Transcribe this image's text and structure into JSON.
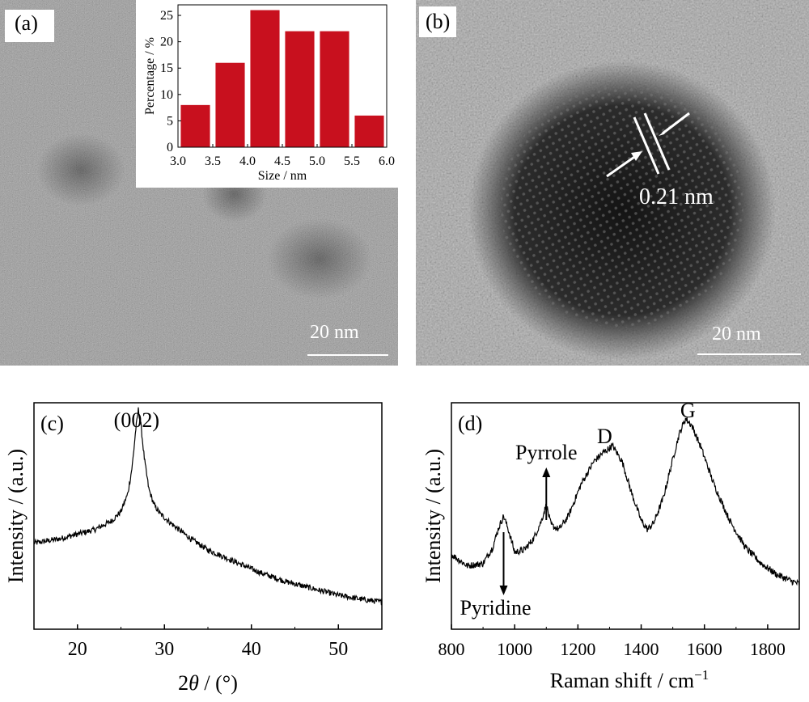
{
  "panels": {
    "a": {
      "label": "(a)",
      "scale_bar": "20 nm"
    },
    "b": {
      "label": "(b)",
      "scale_bar": "20 nm",
      "annotation": "0.21 nm"
    },
    "c": {
      "label": "(c)"
    },
    "d": {
      "label": "(d)"
    }
  },
  "chart_data": [
    {
      "id": "inset_a",
      "type": "bar",
      "xlabel": "Size / nm",
      "ylabel": "Percentage / %",
      "categories": [
        3.25,
        3.75,
        4.25,
        4.75,
        5.25,
        5.75
      ],
      "values": [
        8,
        16,
        26,
        22,
        22,
        6
      ],
      "xlim": [
        3.0,
        6.0
      ],
      "ylim": [
        0,
        27
      ],
      "xticks": [
        "3.0",
        "3.5",
        "4.0",
        "4.5",
        "5.0",
        "5.5",
        "6.0"
      ],
      "yticks": [
        "0",
        "5",
        "10",
        "15",
        "20",
        "25"
      ],
      "bar_color": "#c8101e"
    },
    {
      "id": "xrd_c",
      "type": "line",
      "xlabel_prefix": "2",
      "xlabel_theta": "θ",
      "xlabel_suffix": " / (°)",
      "ylabel": "Intensity / (a.u.)",
      "xlim": [
        15,
        55
      ],
      "xticks": [
        "20",
        "30",
        "40",
        "50"
      ],
      "ylim": [
        0,
        1
      ],
      "x": [
        15,
        18,
        20,
        22,
        24,
        25,
        25.8,
        26.3,
        26.7,
        27.0,
        27.3,
        27.7,
        28.2,
        28.8,
        29.5,
        31,
        33,
        35,
        38,
        41,
        44,
        47,
        50,
        53,
        55
      ],
      "y": [
        0.38,
        0.4,
        0.42,
        0.44,
        0.48,
        0.52,
        0.6,
        0.72,
        0.88,
        0.97,
        0.9,
        0.75,
        0.62,
        0.55,
        0.51,
        0.46,
        0.4,
        0.35,
        0.3,
        0.25,
        0.21,
        0.18,
        0.15,
        0.13,
        0.12
      ],
      "annotations": [
        {
          "text": "(002)",
          "x": 26.8
        }
      ]
    },
    {
      "id": "raman_d",
      "type": "line",
      "xlabel": "Raman shift  / cm",
      "xlabel_sup": "−1",
      "ylabel": "Intensity / (a.u.)",
      "xlim": [
        800,
        1900
      ],
      "xticks": [
        "800",
        "1000",
        "1200",
        "1400",
        "1600",
        "1800"
      ],
      "ylim": [
        0,
        1
      ],
      "x": [
        800,
        850,
        900,
        930,
        950,
        965,
        980,
        1000,
        1030,
        1060,
        1085,
        1100,
        1115,
        1140,
        1170,
        1210,
        1250,
        1280,
        1310,
        1340,
        1370,
        1400,
        1420,
        1440,
        1470,
        1500,
        1520,
        1540,
        1560,
        1590,
        1630,
        1680,
        1730,
        1780,
        1830,
        1880,
        1900
      ],
      "y": [
        0.33,
        0.28,
        0.29,
        0.36,
        0.45,
        0.5,
        0.44,
        0.34,
        0.35,
        0.4,
        0.48,
        0.55,
        0.46,
        0.44,
        0.5,
        0.64,
        0.74,
        0.78,
        0.81,
        0.74,
        0.6,
        0.48,
        0.44,
        0.47,
        0.58,
        0.75,
        0.86,
        0.93,
        0.9,
        0.8,
        0.64,
        0.48,
        0.36,
        0.29,
        0.24,
        0.21,
        0.2
      ],
      "annotations": [
        {
          "text": "Pyrrole",
          "x": 1100,
          "arrow": "up"
        },
        {
          "text": "Pyridine",
          "x": 965,
          "arrow": "down"
        },
        {
          "text": "D",
          "x": 1310
        },
        {
          "text": "G",
          "x": 1540
        }
      ]
    }
  ]
}
